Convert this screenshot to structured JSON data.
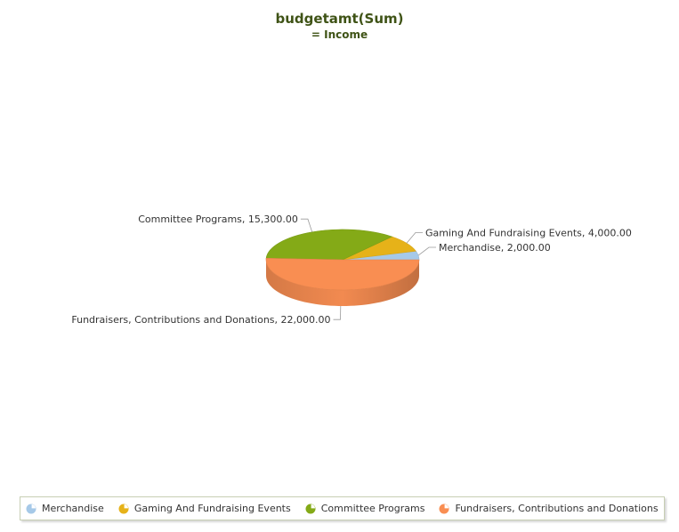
{
  "chart_data": {
    "type": "pie",
    "title": "budgetamt(Sum)",
    "subtitle": "= Income",
    "slices": [
      {
        "label": "Merchandise",
        "value": 2000.0,
        "display": "2,000.00",
        "color": "#a6c9e8"
      },
      {
        "label": "Gaming And Fundraising Events",
        "value": 4000.0,
        "display": "4,000.00",
        "color": "#e6b219"
      },
      {
        "label": "Committee Programs",
        "value": 15300.0,
        "display": "15,300.00",
        "color": "#84aa17"
      },
      {
        "label": "Fundraisers, Contributions and Donations",
        "value": 22000.0,
        "display": "22,000.00",
        "color": "#f98e52"
      }
    ],
    "legend_position": "bottom",
    "style": "3d"
  }
}
